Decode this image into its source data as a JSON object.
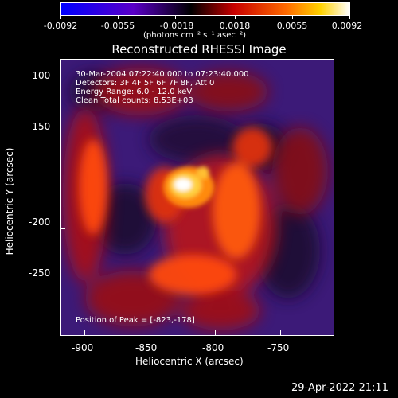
{
  "colorbar": {
    "ticks": [
      "-0.0092",
      "-0.0055",
      "-0.0018",
      "0.0018",
      "0.0055",
      "0.0092"
    ],
    "units": "(photons cm⁻² s⁻¹ asec⁻²)"
  },
  "title": "Reconstructed RHESSI Image",
  "info": {
    "line1": "30-Mar-2004 07:22:40.000 to 07:23:40.000",
    "line2": "Detectors: 3F 4F 5F 6F 7F 8F, Att 0",
    "line3": "Energy Range: 6.0 - 12.0 keV",
    "line4": "Clean     Total counts: 8.53E+03",
    "peak": "Position of Peak = [-823,-178]"
  },
  "axes": {
    "xlabel": "Heliocentric X (arcsec)",
    "ylabel": "Heliocentric Y (arcsec)",
    "xticks": [
      "-900",
      "-850",
      "-800",
      "-750"
    ],
    "yticks": [
      "-100",
      "-150",
      "-200",
      "-250"
    ]
  },
  "timestamp": "29-Apr-2022 21:11"
}
